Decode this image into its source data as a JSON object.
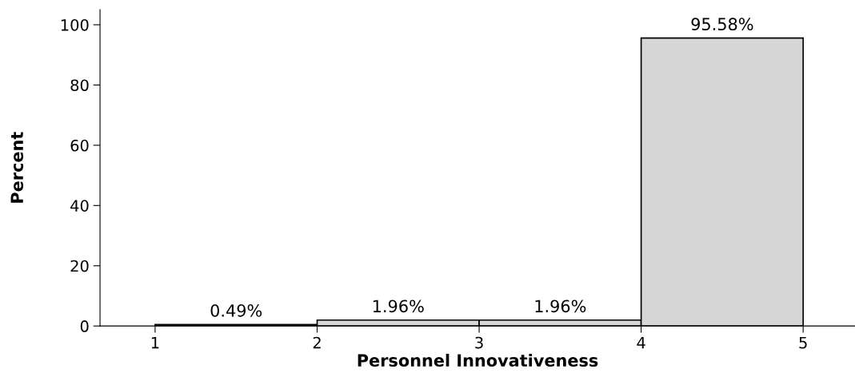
{
  "chart_data": {
    "type": "histogram",
    "xlabel": "Personnel Innovativeness",
    "ylabel": "Percent",
    "bins": [
      1,
      2,
      3,
      4,
      5
    ],
    "values": [
      0.49,
      1.96,
      1.96,
      95.58
    ],
    "value_labels": [
      "0.49%",
      "1.96%",
      "1.96%",
      "95.58%"
    ],
    "color": "#d6d6d6",
    "xlim": [
      0.66,
      5.32
    ],
    "xticks": [
      1,
      2,
      3,
      4,
      5
    ],
    "ylim": [
      0,
      105
    ],
    "yticks": [
      0,
      20,
      40,
      60,
      80,
      100
    ],
    "grid": false
  }
}
